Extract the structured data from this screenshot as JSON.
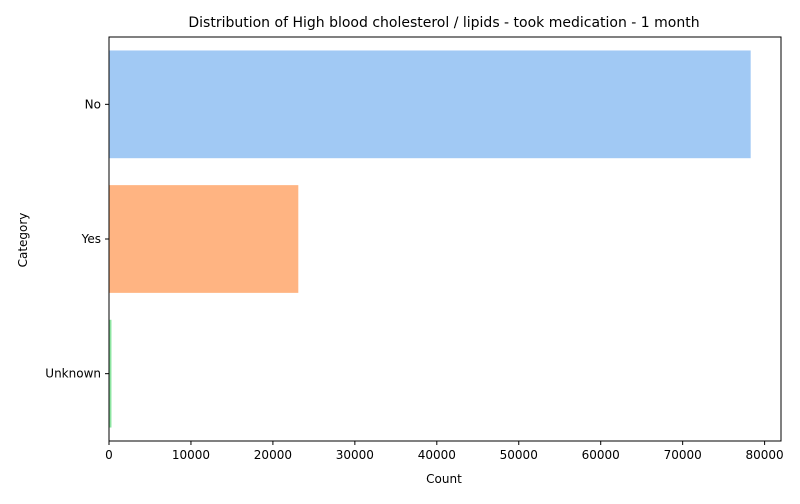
{
  "chart_data": {
    "type": "bar",
    "orientation": "horizontal",
    "title": "Distribution of High blood cholesterol / lipids - took medication - 1 month",
    "xlabel": "Count",
    "ylabel": "Category",
    "categories": [
      "No",
      "Yes",
      "Unknown"
    ],
    "values": [
      78300,
      23100,
      300
    ],
    "xlim": [
      0,
      82000
    ],
    "xticks": [
      0,
      10000,
      20000,
      30000,
      40000,
      50000,
      60000,
      70000,
      80000
    ],
    "colors": [
      "#a1c9f4",
      "#ffb482",
      "#8de5a1"
    ],
    "grid": false,
    "legend": "none"
  }
}
